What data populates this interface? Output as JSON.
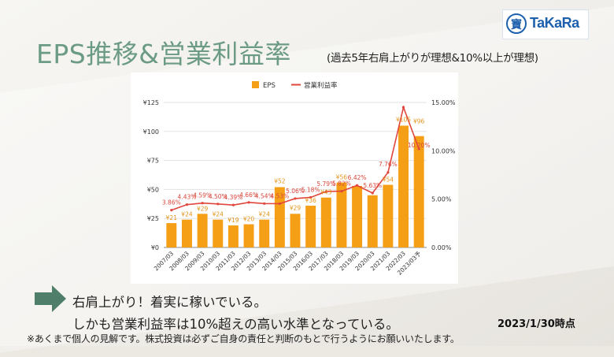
{
  "slide": {
    "title": "EPS推移&営業利益率",
    "subtitle": "(過去5年右肩上がりが理想&10%以上が理想)",
    "logo_text": "TaKaRa",
    "logo_mark": "寶",
    "message_line1": "右肩上がり！着実に稼いでいる。",
    "message_line2": "しかも営業利益率は10%超えの高い水準となっている。",
    "as_of": "2023/1/30時点",
    "disclaimer": "※あくまで個人の見解です。株式投資は必ずご自身の責任と判断のもとで行うようにお願いいたします。",
    "colors": {
      "title": "#6b9a85",
      "arrow": "#4f7f6a",
      "logo": "#1d61ad"
    },
    "icons": [
      "right-arrow-icon",
      "takara-logo-icon"
    ]
  },
  "chart_data": {
    "type": "bar+line",
    "categories": [
      "2007/03",
      "2008/03",
      "2009/03",
      "2010/03",
      "2011/03",
      "2012/03",
      "2013/03",
      "2014/03",
      "2015/03",
      "2016/03",
      "2017/03",
      "2018/03",
      "2019/03",
      "2020/03",
      "2021/03",
      "2022/03",
      "2023/03予"
    ],
    "series": [
      {
        "name": "EPS",
        "kind": "bar",
        "axis": "left",
        "color": "#f59f16",
        "values": [
          21,
          24,
          29,
          24,
          19,
          20,
          24,
          52,
          29,
          36,
          43,
          56,
          53,
          45,
          54,
          105,
          96
        ],
        "labels": [
          "¥21",
          "¥24",
          "¥29",
          "¥24",
          "¥19",
          "¥20",
          "¥24",
          "¥52",
          "¥29",
          "¥36",
          "¥43",
          "¥56",
          "",
          "",
          "¥54",
          "¥105",
          "¥96"
        ]
      },
      {
        "name": "営業利益率",
        "kind": "line",
        "axis": "right",
        "color": "#e0463c",
        "values": [
          3.86,
          4.43,
          4.59,
          4.5,
          4.39,
          4.66,
          4.54,
          4.53,
          5.06,
          5.18,
          5.79,
          5.82,
          6.42,
          5.63,
          7.76,
          14.5,
          10.2
        ],
        "labels": [
          "3.86%",
          "4.43%",
          "4.59%",
          "4.50%",
          "4.39%",
          "4.66%",
          "4.54%",
          "4.53%",
          "5.06%",
          "5.18%",
          "5.79%",
          "5.82%",
          "6.42%",
          "5.63%",
          "7.76%",
          "",
          "10.20%"
        ]
      }
    ],
    "yleft": {
      "ticks": [
        "¥0",
        "¥25",
        "¥50",
        "¥75",
        "¥100",
        "¥125"
      ],
      "range": [
        0,
        125
      ]
    },
    "yright": {
      "ticks": [
        "0.00%",
        "5.00%",
        "10.00%",
        "15.00%"
      ],
      "range": [
        0,
        15
      ]
    },
    "legend": {
      "position": "top",
      "labels": [
        "EPS",
        "営業利益率"
      ]
    },
    "grid": true
  }
}
